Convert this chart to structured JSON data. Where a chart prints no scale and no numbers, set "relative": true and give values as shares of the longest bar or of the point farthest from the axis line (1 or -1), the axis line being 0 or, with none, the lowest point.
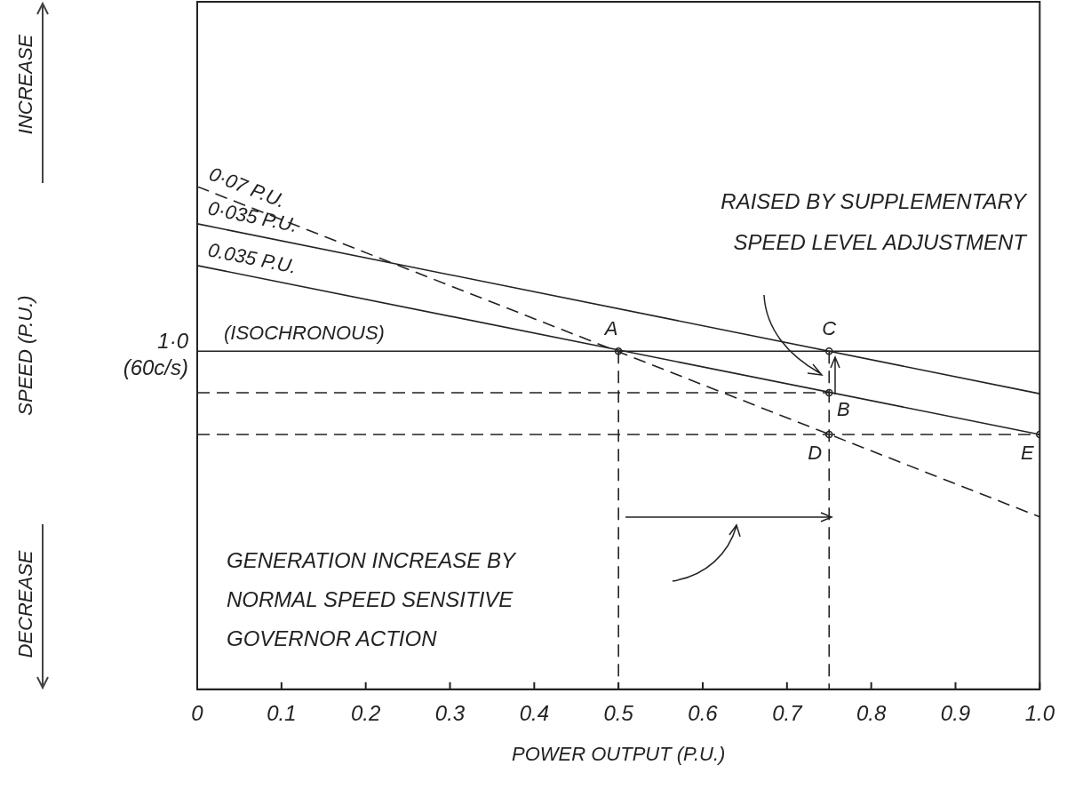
{
  "chart_data": {
    "type": "line",
    "relative": true,
    "xlabel": "POWER OUTPUT (P.U.)",
    "xlim": [
      0,
      1.0
    ],
    "xticks": [
      0,
      0.1,
      0.2,
      0.3,
      0.4,
      0.5,
      0.6,
      0.7,
      0.8,
      0.9,
      {
        "value": 1.0,
        "label": "1.0"
      }
    ],
    "grid": false,
    "legend": false,
    "marker": "none",
    "series": [
      {
        "name": "0·07 P.U.",
        "color": "#222222",
        "line_style": "dashed",
        "x": [
          0,
          1.0
        ],
        "values": [
          1,
          0.343
        ]
      },
      {
        "name": "0·035 P.U.",
        "color": "#222222",
        "line_style": "solid",
        "x": [
          0,
          1.0
        ],
        "values": [
          0.926,
          0.588
        ]
      },
      {
        "name": "0.035 P.U.",
        "color": "#222222",
        "line_style": "solid",
        "x": [
          0,
          1.0
        ],
        "values": [
          0.843,
          0.507
        ]
      },
      {
        "name": "(ISOCHRONOUS)",
        "color": "#222222",
        "line_style": "solid",
        "x": [
          0,
          1.0
        ],
        "values": [
          0.6725,
          0.6725
        ]
      },
      {
        "color": "#222222",
        "line_style": "dashed",
        "x": [
          0,
          0.75
        ],
        "values": [
          0.59,
          0.59
        ]
      },
      {
        "color": "#222222",
        "line_style": "dashed",
        "x": [
          0,
          1.0
        ],
        "values": [
          0.507,
          0.507
        ]
      },
      {
        "color": "#222222",
        "line_style": "dashed",
        "x": [
          0.5,
          0.5
        ],
        "values": [
          0.6725,
          0
        ]
      },
      {
        "color": "#222222",
        "line_style": "dashed",
        "x": [
          0.75,
          0.75
        ],
        "values": [
          0.6725,
          0
        ]
      },
      {
        "type": "scatter",
        "color": "#222222",
        "marker": "circle",
        "x": [
          0.5,
          0.75,
          0.75,
          0.75,
          1.0
        ],
        "values": [
          0.6725,
          0.6725,
          0.59,
          0.507,
          0.507
        ]
      }
    ],
    "annotations": [
      {
        "text": "A",
        "x": 0.5,
        "y": 0.6725
      },
      {
        "text": "C",
        "x": 0.75,
        "y": 0.6725
      },
      {
        "text": "B",
        "x": 0.75,
        "y": 0.59
      },
      {
        "text": "D",
        "x": 0.75,
        "y": 0.507
      },
      {
        "text": "E",
        "x": 1.0,
        "y": 0.507
      },
      "1·0 (60c/s)",
      "RAISED BY SUPPLEMENTARY SPEED LEVEL ADJUSTMENT",
      "GENERATION INCREASE BY NORMAL SPEED SENSITIVE GOVERNOR ACTION",
      "INCREASE",
      "DECREASE",
      "SPEED (P.U.)"
    ]
  }
}
